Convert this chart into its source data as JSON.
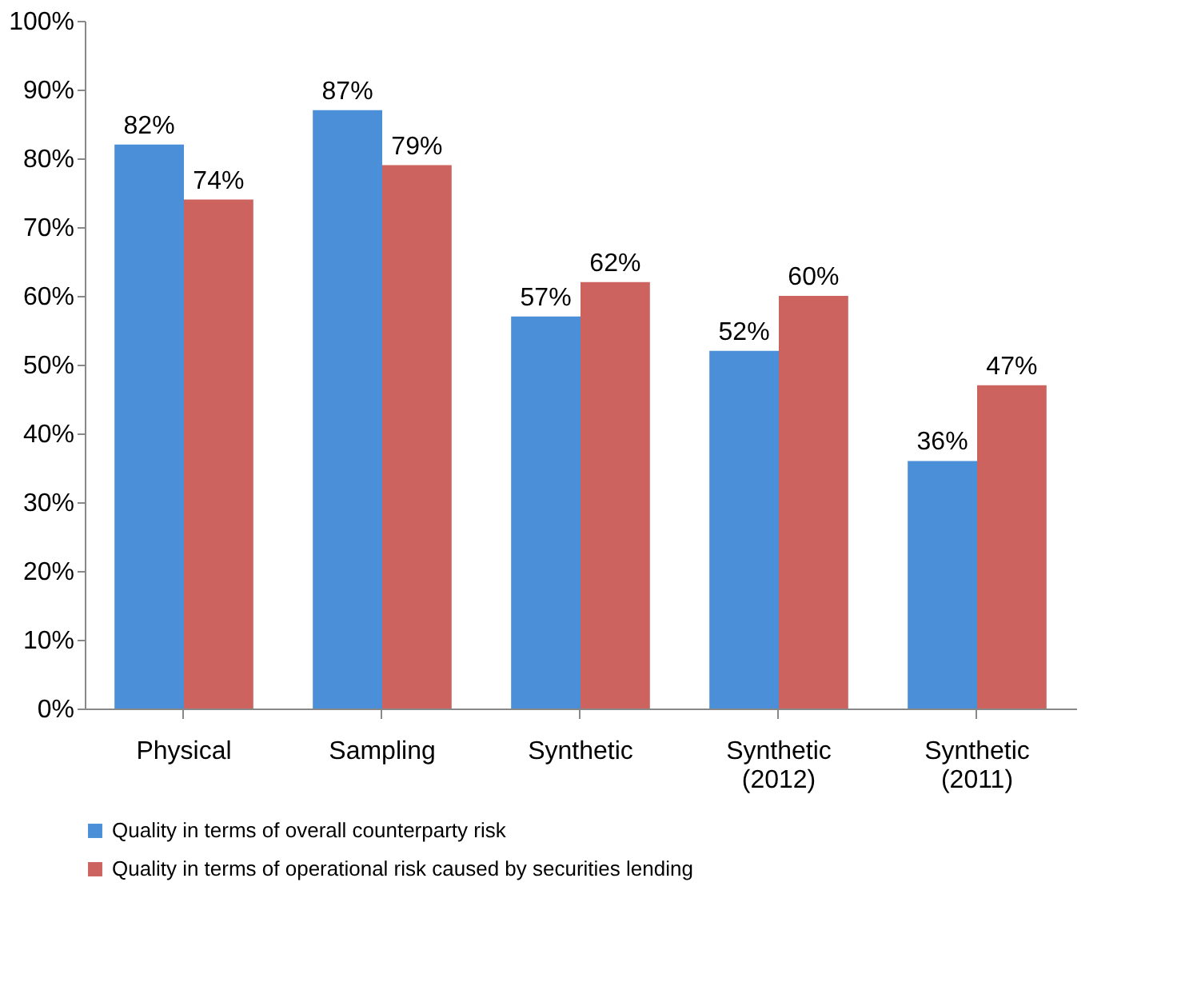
{
  "chart_data": {
    "type": "bar",
    "categories": [
      "Physical",
      "Sampling",
      "Synthetic",
      "Synthetic (2012)",
      "Synthetic (2011)"
    ],
    "series": [
      {
        "name": "Quality in terms of overall counterparty risk",
        "color": "#4a8fd8",
        "values": [
          82,
          87,
          57,
          52,
          36
        ],
        "value_labels": [
          "82%",
          "87%",
          "57%",
          "52%",
          "36%"
        ]
      },
      {
        "name": "Quality in terms of operational risk caused by securities lending",
        "color": "#cc635f",
        "values": [
          74,
          79,
          62,
          60,
          47
        ],
        "value_labels": [
          "74%",
          "79%",
          "62%",
          "60%",
          "47%"
        ]
      }
    ],
    "ylim": [
      0,
      100
    ],
    "yticks": [
      {
        "value": 0,
        "label": "0%"
      },
      {
        "value": 10,
        "label": "10%"
      },
      {
        "value": 20,
        "label": "20%"
      },
      {
        "value": 30,
        "label": "30%"
      },
      {
        "value": 40,
        "label": "40%"
      },
      {
        "value": 50,
        "label": "50%"
      },
      {
        "value": 60,
        "label": "60%"
      },
      {
        "value": 70,
        "label": "70%"
      },
      {
        "value": 80,
        "label": "80%"
      },
      {
        "value": 90,
        "label": "90%"
      },
      {
        "value": 100,
        "label": "100%"
      }
    ],
    "grid": false,
    "legend": "bottom"
  }
}
